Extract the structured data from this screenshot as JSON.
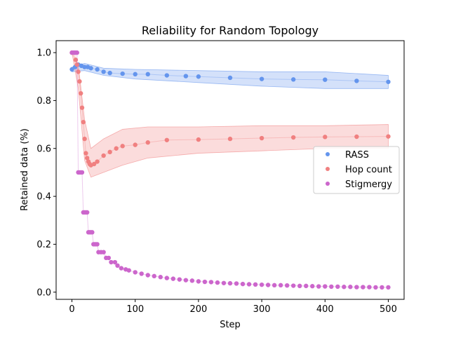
{
  "chart_data": {
    "type": "scatter",
    "title": "Reliability for Random Topology",
    "xlabel": "Step",
    "ylabel": "Retained data (%)",
    "xlim": [
      -25,
      525
    ],
    "ylim": [
      -0.03,
      1.05
    ],
    "xticks": [
      0,
      100,
      200,
      300,
      400,
      500
    ],
    "yticks": [
      0.0,
      0.2,
      0.4,
      0.6,
      0.8,
      1.0
    ],
    "xtick_labels": [
      "0",
      "100",
      "200",
      "300",
      "400",
      "500"
    ],
    "ytick_labels": [
      "0.0",
      "0.2",
      "0.4",
      "0.6",
      "0.8",
      "1.0"
    ],
    "grid": false,
    "legend_position": "center-right",
    "series": [
      {
        "name": "RASS",
        "color": "#6495ED",
        "band_color": "#6495ED",
        "points": [
          [
            0,
            0.93
          ],
          [
            5,
            0.94
          ],
          [
            10,
            0.95
          ],
          [
            15,
            0.945
          ],
          [
            20,
            0.94
          ],
          [
            25,
            0.94
          ],
          [
            30,
            0.935
          ],
          [
            40,
            0.93
          ],
          [
            50,
            0.92
          ],
          [
            60,
            0.915
          ],
          [
            80,
            0.912
          ],
          [
            100,
            0.91
          ],
          [
            120,
            0.91
          ],
          [
            150,
            0.905
          ],
          [
            180,
            0.902
          ],
          [
            200,
            0.9
          ],
          [
            250,
            0.895
          ],
          [
            300,
            0.89
          ],
          [
            350,
            0.888
          ],
          [
            400,
            0.887
          ],
          [
            450,
            0.882
          ],
          [
            500,
            0.878
          ]
        ],
        "band": [
          [
            0,
            0.92,
            0.94
          ],
          [
            20,
            0.925,
            0.955
          ],
          [
            50,
            0.905,
            0.935
          ],
          [
            100,
            0.89,
            0.93
          ],
          [
            200,
            0.875,
            0.925
          ],
          [
            300,
            0.86,
            0.92
          ],
          [
            400,
            0.85,
            0.92
          ],
          [
            500,
            0.85,
            0.905
          ]
        ]
      },
      {
        "name": "Hop count",
        "color": "#F08080",
        "band_color": "#F08080",
        "points": [
          [
            0,
            1.0
          ],
          [
            4,
            1.0
          ],
          [
            6,
            0.97
          ],
          [
            8,
            0.95
          ],
          [
            10,
            0.92
          ],
          [
            12,
            0.88
          ],
          [
            14,
            0.83
          ],
          [
            16,
            0.77
          ],
          [
            18,
            0.71
          ],
          [
            20,
            0.64
          ],
          [
            22,
            0.58
          ],
          [
            24,
            0.56
          ],
          [
            26,
            0.545
          ],
          [
            28,
            0.535
          ],
          [
            30,
            0.53
          ],
          [
            35,
            0.535
          ],
          [
            40,
            0.545
          ],
          [
            50,
            0.57
          ],
          [
            60,
            0.585
          ],
          [
            70,
            0.6
          ],
          [
            80,
            0.61
          ],
          [
            100,
            0.615
          ],
          [
            120,
            0.625
          ],
          [
            150,
            0.635
          ],
          [
            200,
            0.637
          ],
          [
            250,
            0.64
          ],
          [
            300,
            0.643
          ],
          [
            350,
            0.646
          ],
          [
            400,
            0.648
          ],
          [
            450,
            0.649
          ],
          [
            500,
            0.65
          ]
        ],
        "band": [
          [
            0,
            1.0,
            1.0
          ],
          [
            10,
            0.85,
            0.95
          ],
          [
            20,
            0.55,
            0.72
          ],
          [
            30,
            0.48,
            0.6
          ],
          [
            50,
            0.5,
            0.64
          ],
          [
            80,
            0.53,
            0.68
          ],
          [
            120,
            0.56,
            0.69
          ],
          [
            200,
            0.58,
            0.69
          ],
          [
            300,
            0.59,
            0.695
          ],
          [
            400,
            0.6,
            0.695
          ],
          [
            500,
            0.6,
            0.7
          ]
        ]
      },
      {
        "name": "Stigmergy",
        "color": "#CC66CC",
        "band_color": "#CC66CC",
        "points": [
          [
            0,
            1.0
          ],
          [
            2,
            1.0
          ],
          [
            4,
            1.0
          ],
          [
            6,
            1.0
          ],
          [
            8,
            1.0
          ],
          [
            10,
            0.5
          ],
          [
            12,
            0.5
          ],
          [
            14,
            0.5
          ],
          [
            16,
            0.5
          ],
          [
            18,
            0.333
          ],
          [
            20,
            0.333
          ],
          [
            22,
            0.333
          ],
          [
            24,
            0.333
          ],
          [
            26,
            0.25
          ],
          [
            28,
            0.25
          ],
          [
            30,
            0.25
          ],
          [
            32,
            0.25
          ],
          [
            34,
            0.2
          ],
          [
            36,
            0.2
          ],
          [
            38,
            0.2
          ],
          [
            40,
            0.2
          ],
          [
            42,
            0.167
          ],
          [
            46,
            0.167
          ],
          [
            50,
            0.167
          ],
          [
            54,
            0.143
          ],
          [
            58,
            0.143
          ],
          [
            62,
            0.125
          ],
          [
            68,
            0.125
          ],
          [
            72,
            0.111
          ],
          [
            78,
            0.1
          ],
          [
            85,
            0.095
          ],
          [
            90,
            0.091
          ],
          [
            100,
            0.083
          ],
          [
            110,
            0.077
          ],
          [
            120,
            0.071
          ],
          [
            130,
            0.067
          ],
          [
            140,
            0.063
          ],
          [
            150,
            0.059
          ],
          [
            160,
            0.056
          ],
          [
            170,
            0.053
          ],
          [
            180,
            0.05
          ],
          [
            190,
            0.048
          ],
          [
            200,
            0.045
          ],
          [
            210,
            0.043
          ],
          [
            220,
            0.042
          ],
          [
            230,
            0.04
          ],
          [
            240,
            0.038
          ],
          [
            250,
            0.037
          ],
          [
            260,
            0.036
          ],
          [
            270,
            0.034
          ],
          [
            280,
            0.033
          ],
          [
            290,
            0.032
          ],
          [
            300,
            0.031
          ],
          [
            310,
            0.03
          ],
          [
            320,
            0.029
          ],
          [
            330,
            0.029
          ],
          [
            340,
            0.028
          ],
          [
            350,
            0.027
          ],
          [
            360,
            0.026
          ],
          [
            370,
            0.026
          ],
          [
            380,
            0.025
          ],
          [
            390,
            0.024
          ],
          [
            400,
            0.024
          ],
          [
            410,
            0.023
          ],
          [
            420,
            0.023
          ],
          [
            430,
            0.022
          ],
          [
            440,
            0.022
          ],
          [
            450,
            0.021
          ],
          [
            460,
            0.021
          ],
          [
            470,
            0.021
          ],
          [
            480,
            0.02
          ],
          [
            490,
            0.02
          ],
          [
            500,
            0.02
          ]
        ]
      }
    ]
  }
}
